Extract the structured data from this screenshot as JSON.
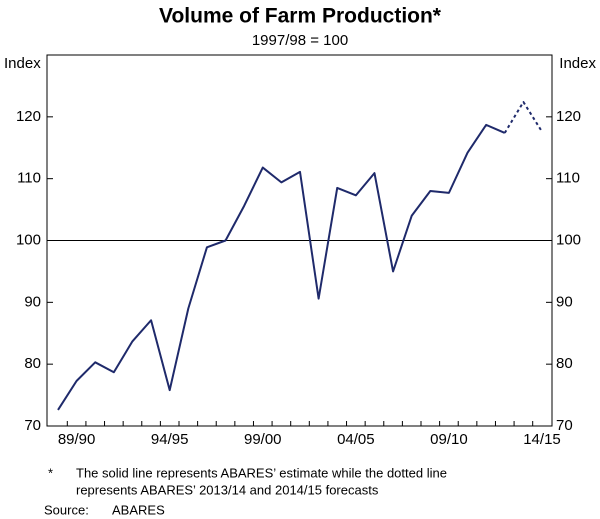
{
  "chart_data": {
    "type": "line",
    "title": "Volume of Farm Production*",
    "subtitle": "1997/98 = 100",
    "y_label": "Index",
    "y2_label": "Index",
    "categories": [
      null,
      "89/90",
      null,
      null,
      null,
      null,
      "94/95",
      null,
      null,
      null,
      null,
      "99/00",
      null,
      null,
      null,
      null,
      "04/05",
      null,
      null,
      null,
      null,
      "09/10",
      null,
      null,
      null,
      null,
      "14/15"
    ],
    "series": [
      {
        "color": "#1f2a6b",
        "dashed": false,
        "values": [
          72.6,
          77.3,
          80.3,
          78.7,
          83.7,
          87.1,
          75.8,
          89.0,
          98.9,
          100,
          105.6,
          111.8,
          109.4,
          111.1,
          90.6,
          108.5,
          107.3,
          110.9,
          95.0,
          104.0,
          108.0,
          107.7,
          114.2,
          118.7,
          117.4,
          null,
          null
        ]
      },
      {
        "color": "#1f2a6b",
        "dashed": true,
        "values": [
          null,
          null,
          null,
          null,
          null,
          null,
          null,
          null,
          null,
          null,
          null,
          null,
          null,
          null,
          null,
          null,
          null,
          null,
          null,
          null,
          null,
          null,
          null,
          null,
          117.4,
          122.4,
          117.6
        ]
      }
    ],
    "ylim": [
      70,
      130
    ],
    "yticks": [
      70,
      80,
      90,
      100,
      110,
      120
    ],
    "y2lim": [
      70,
      130
    ],
    "y2ticks": [
      70,
      80,
      90,
      100,
      110,
      120
    ],
    "hline": 100,
    "footnote_marker": "*",
    "footnote": [
      "The solid line represents ABARES’ estimate while the dotted line",
      "represents ABARES’ 2013/14 and 2014/15 forecasts"
    ],
    "source_label": "Source:",
    "source": "ABARES"
  }
}
